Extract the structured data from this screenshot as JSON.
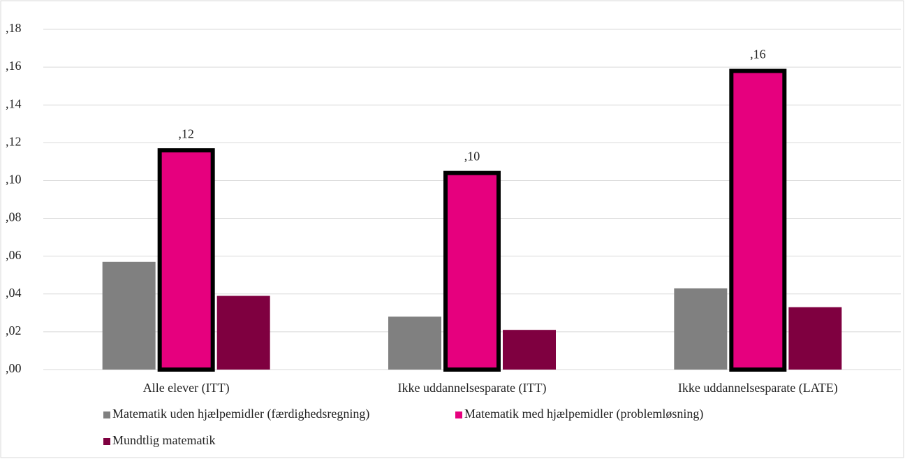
{
  "chart_data": {
    "type": "bar",
    "categories": [
      "Alle elever (ITT)",
      "Ikke uddannelsesparate (ITT)",
      "Ikke uddannelsesparate (LATE)"
    ],
    "series": [
      {
        "name": "Matematik uden hjælpemidler (færdighedsregning)",
        "color": "#808080",
        "values": [
          0.057,
          0.028,
          0.043
        ]
      },
      {
        "name": "Matematik med hjælpemidler (problemløsning)",
        "color": "#e6007e",
        "border_color": "#000000",
        "values": [
          0.116,
          0.104,
          0.158
        ],
        "value_labels": [
          ",12",
          ",10",
          ",16"
        ]
      },
      {
        "name": "Mundtlig matematik",
        "color": "#7f0040",
        "values": [
          0.039,
          0.021,
          0.033
        ]
      }
    ],
    "ylim": [
      0,
      0.18
    ],
    "yticks": [
      {
        "value": 0,
        "label": ",00"
      },
      {
        "value": 0.02,
        "label": ",02"
      },
      {
        "value": 0.04,
        "label": ",04"
      },
      {
        "value": 0.06,
        "label": ",06"
      },
      {
        "value": 0.08,
        "label": ",08"
      },
      {
        "value": 0.1,
        "label": ",10"
      },
      {
        "value": 0.12,
        "label": ",12"
      },
      {
        "value": 0.14,
        "label": ",14"
      },
      {
        "value": 0.16,
        "label": ",16"
      },
      {
        "value": 0.18,
        "label": ",18"
      }
    ],
    "grid": true
  }
}
